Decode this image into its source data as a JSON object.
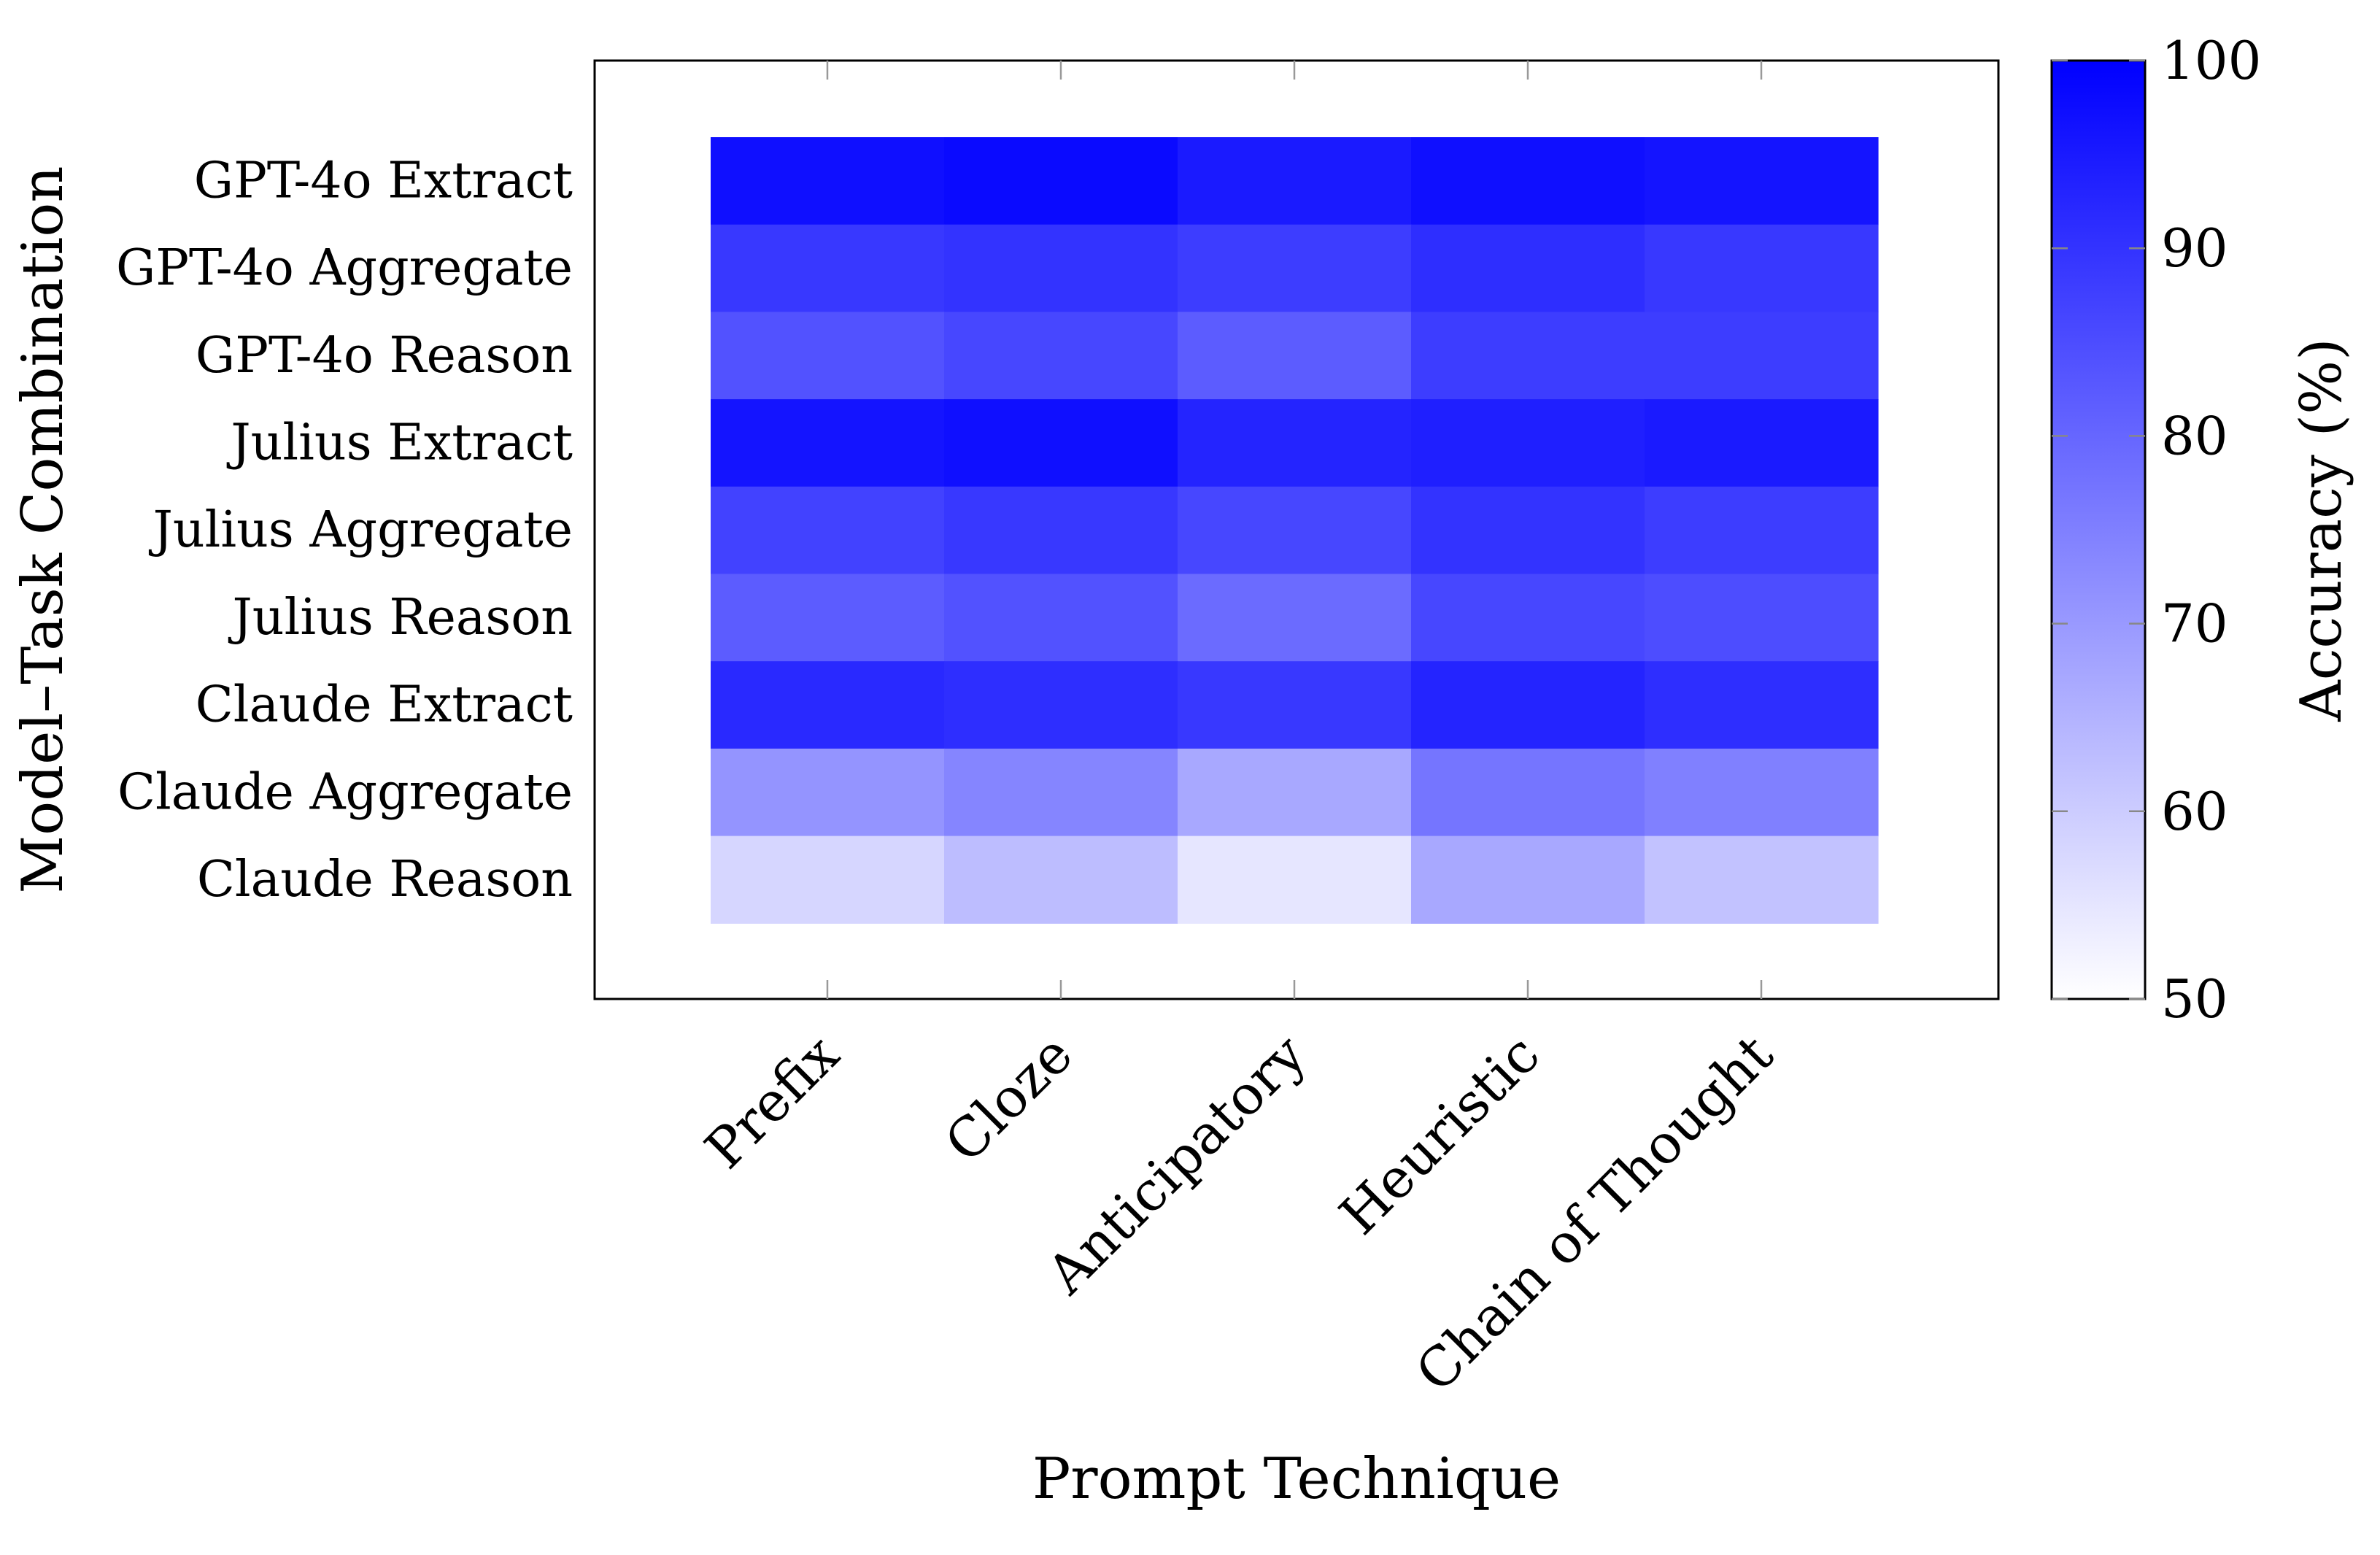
{
  "chart_data": {
    "type": "heatmap",
    "title": "",
    "xlabel": "Prompt Technique",
    "ylabel": "Model–Task Combination",
    "x_categories": [
      "Prefix",
      "Cloze",
      "Anticipatory",
      "Heuristic",
      "Chain of Thought"
    ],
    "y_categories": [
      "GPT-4o Extract",
      "GPT-4o Aggregate",
      "GPT-4o Reason",
      "Julius Extract",
      "Julius Aggregate",
      "Julius Reason",
      "Claude Extract",
      "Claude Aggregate",
      "Claude Reason"
    ],
    "values": [
      [
        97,
        98,
        95,
        97,
        96
      ],
      [
        89,
        90,
        88,
        91,
        89
      ],
      [
        84,
        86,
        82,
        88,
        88
      ],
      [
        96,
        97,
        93,
        94,
        95
      ],
      [
        87,
        89,
        86,
        90,
        88
      ],
      [
        82,
        84,
        79,
        86,
        85
      ],
      [
        92,
        91,
        89,
        93,
        91
      ],
      [
        71,
        74,
        67,
        77,
        75
      ],
      [
        58,
        63,
        55,
        67,
        62
      ]
    ],
    "colorbar": {
      "label": "Accuracy (%)",
      "range": [
        50,
        100
      ],
      "ticks": [
        50,
        60,
        70,
        80,
        90,
        100
      ],
      "color_low": "#ffffff",
      "color_high": "#0000ff"
    },
    "grid": false,
    "legend": "right colorbar"
  }
}
